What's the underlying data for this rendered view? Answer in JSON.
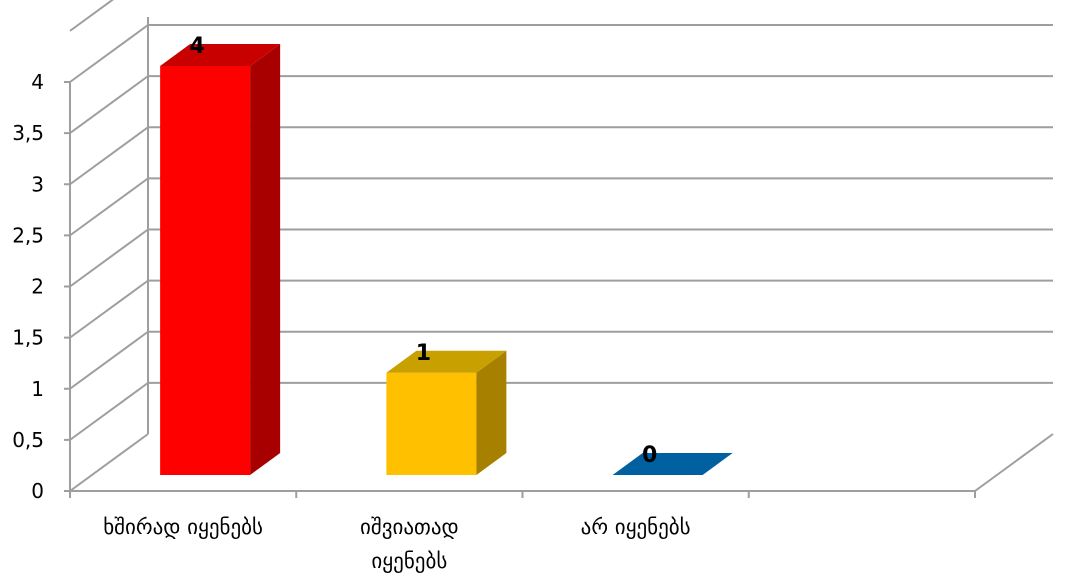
{
  "chart_data": {
    "type": "bar",
    "style": "3d-column",
    "categories": [
      "ხშირად იყენებს",
      "იშვიათად იყენებს",
      "არ იყენებს"
    ],
    "category_lines": [
      [
        "ხშირად იყენებს"
      ],
      [
        "იშვიათად",
        "იყენებს"
      ],
      [
        "არ იყენებს"
      ]
    ],
    "values": [
      4,
      1,
      0
    ],
    "data_labels": [
      "4",
      "1",
      "0"
    ],
    "y_ticks": [
      "0",
      "0,5",
      "1",
      "1,5",
      "2",
      "2,5",
      "3",
      "3,5",
      "4"
    ],
    "ylim": [
      0,
      4
    ],
    "grid": true,
    "legend": false,
    "colors": {
      "front": [
        "#FF0000",
        "#FFC000",
        "#0060A0"
      ],
      "side": [
        "#A80000",
        "#A88000",
        "#004070"
      ],
      "top": [
        "#C80000",
        "#C8A000",
        "#0050A0"
      ],
      "grid": "#9e9e9e"
    }
  }
}
